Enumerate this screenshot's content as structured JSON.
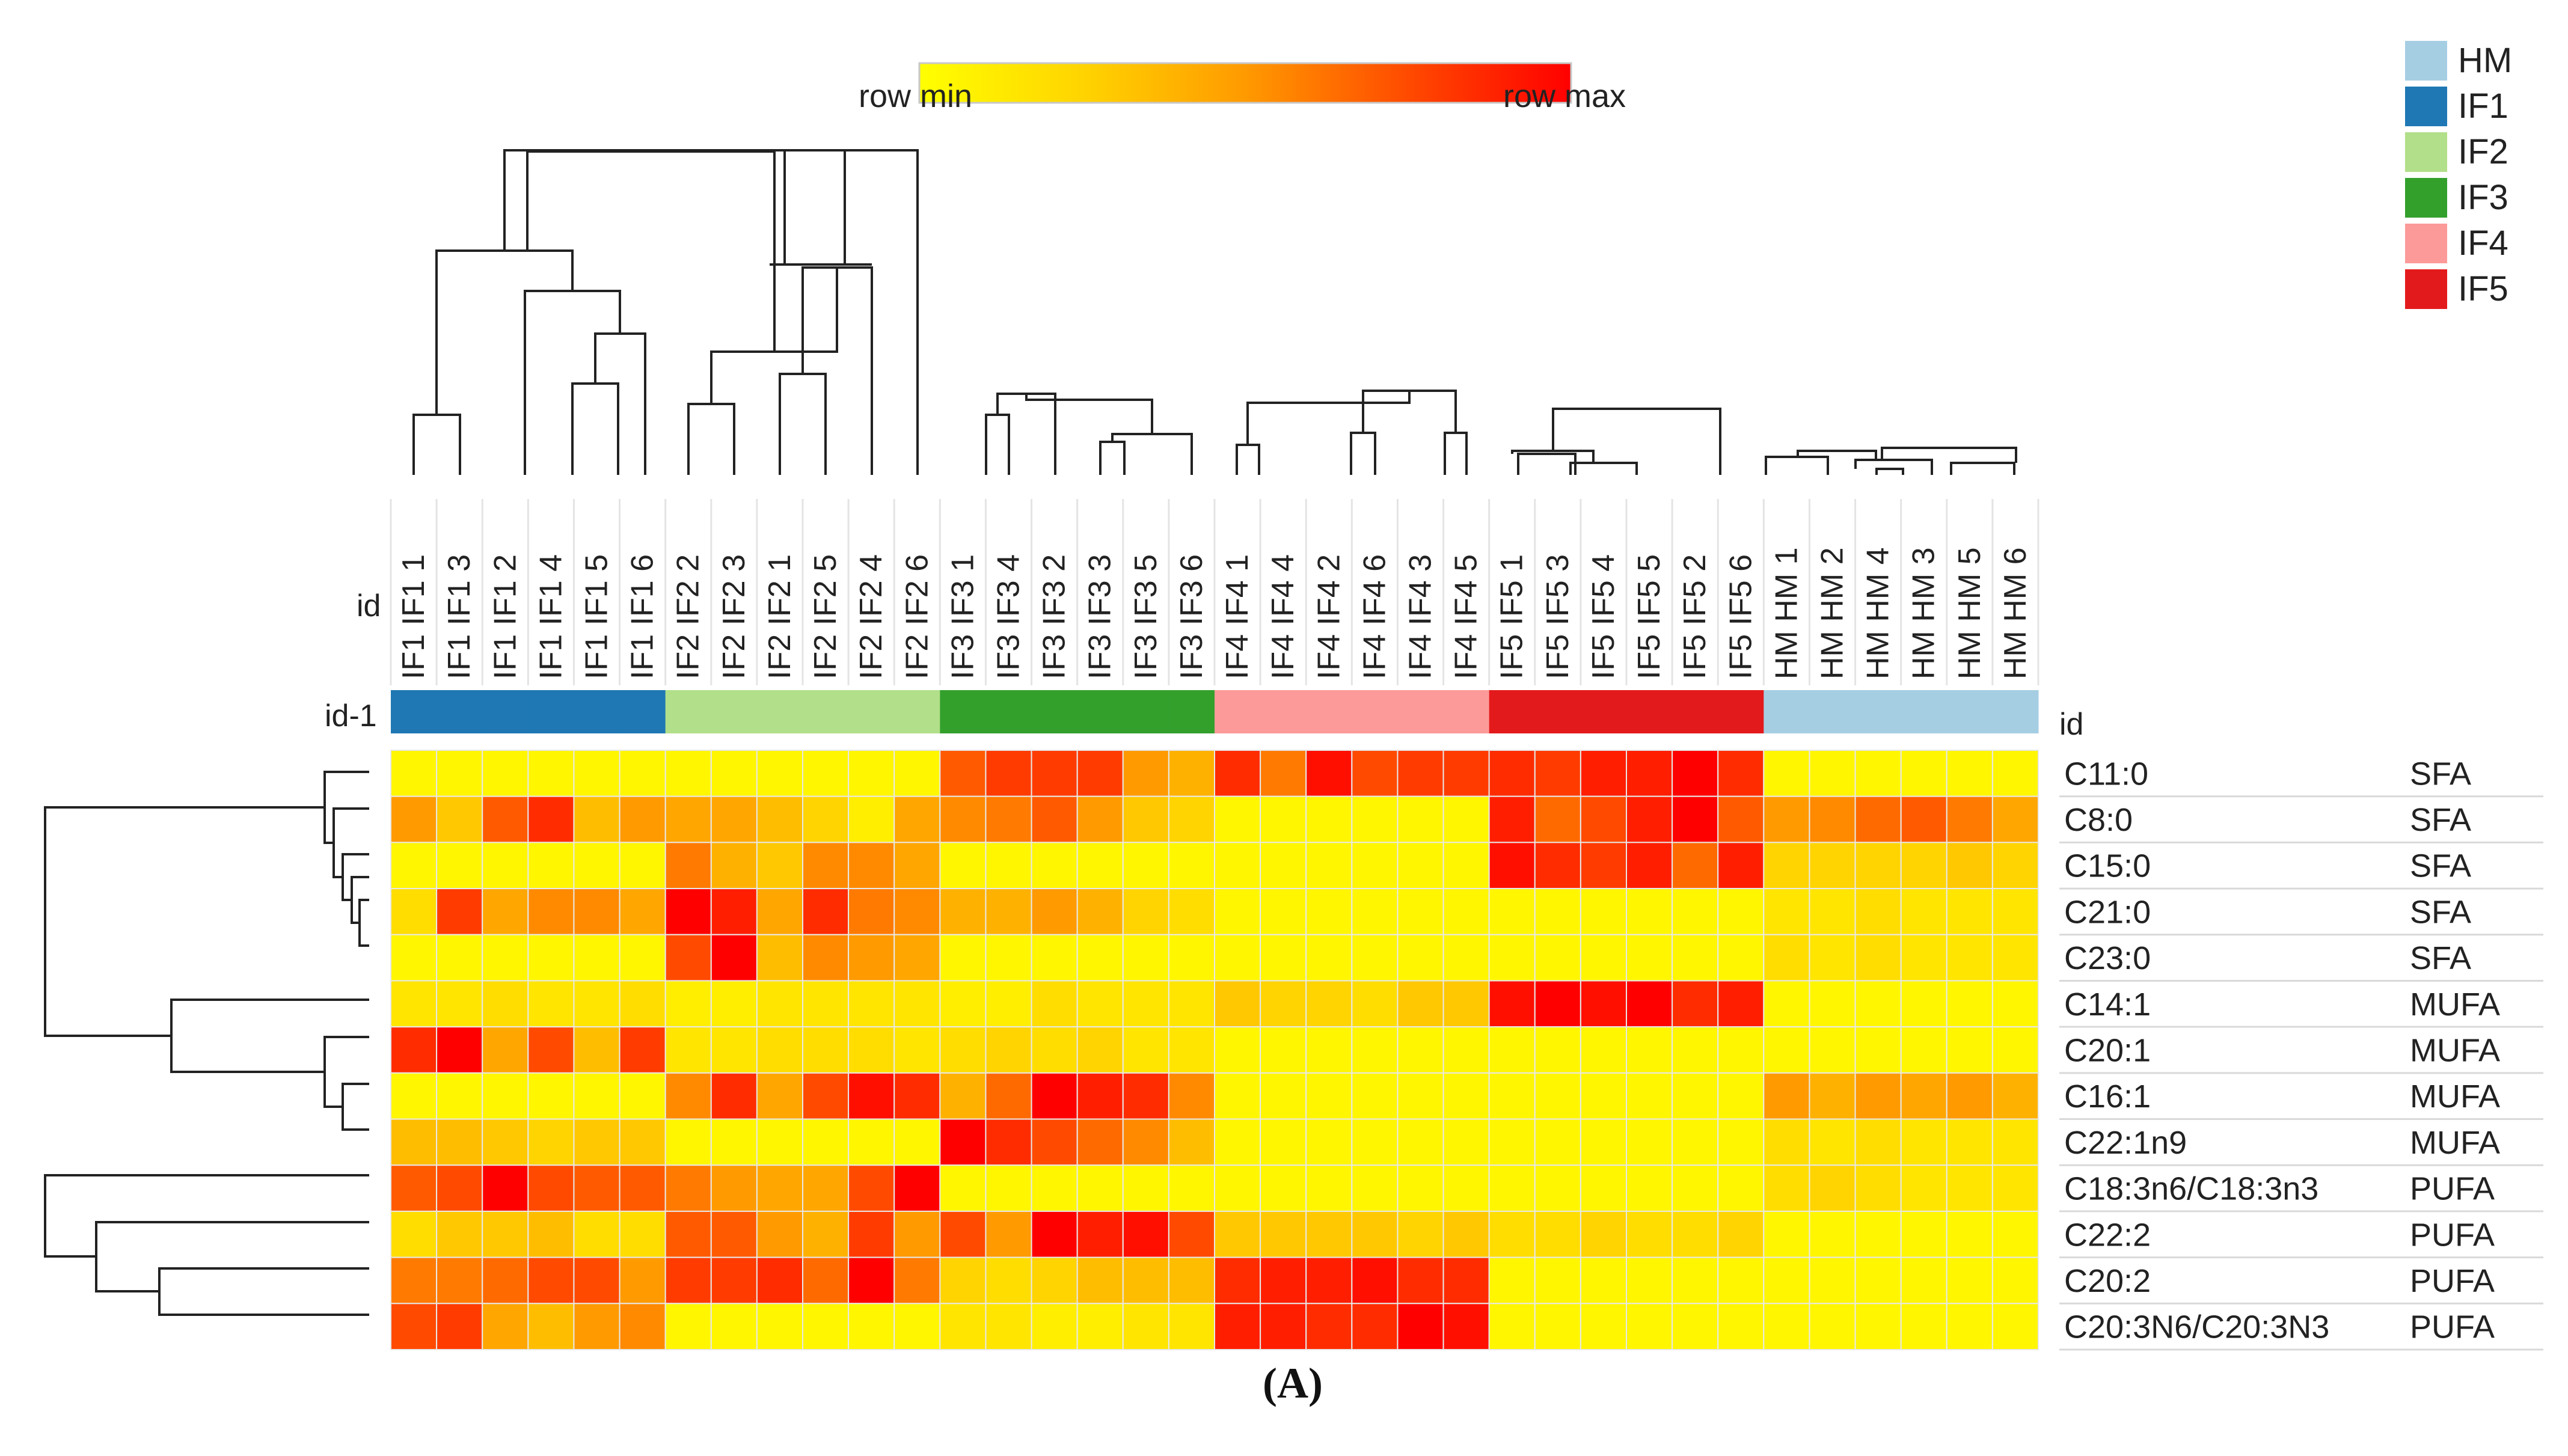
{
  "chart_data": {
    "type": "heatmap",
    "title": "",
    "panel_label": "(A)",
    "colorbar": {
      "min_label": "row min",
      "max_label": "row max",
      "colors": [
        "#ffff00",
        "#ffd400",
        "#ff9a00",
        "#ff4a00",
        "#ff0000"
      ]
    },
    "column_header_label": "id",
    "annotation_row_label": "id-1",
    "row_header_label": "id",
    "columns": [
      "IF1 IF1 1",
      "IF1 IF1 3",
      "IF1 IF1 2",
      "IF1 IF1 4",
      "IF1 IF1 5",
      "IF1 IF1 6",
      "IF2 IF2 2",
      "IF2 IF2 3",
      "IF2 IF2 1",
      "IF2 IF2 5",
      "IF2 IF2 4",
      "IF2 IF2 6",
      "IF3 IF3 1",
      "IF3 IF3 4",
      "IF3 IF3 2",
      "IF3 IF3 3",
      "IF3 IF3 5",
      "IF3 IF3 6",
      "IF4 IF4 1",
      "IF4 IF4 4",
      "IF4 IF4 2",
      "IF4 IF4 6",
      "IF4 IF4 3",
      "IF4 IF4 5",
      "IF5 IF5 1",
      "IF5 IF5 3",
      "IF5 IF5 4",
      "IF5 IF5 5",
      "IF5 IF5 2",
      "IF5 IF5 6",
      "HM HM 1",
      "HM HM 2",
      "HM HM 4",
      "HM HM 3",
      "HM HM 5",
      "HM HM 6"
    ],
    "column_groups": [
      "IF1",
      "IF1",
      "IF1",
      "IF1",
      "IF1",
      "IF1",
      "IF2",
      "IF2",
      "IF2",
      "IF2",
      "IF2",
      "IF2",
      "IF3",
      "IF3",
      "IF3",
      "IF3",
      "IF3",
      "IF3",
      "IF4",
      "IF4",
      "IF4",
      "IF4",
      "IF4",
      "IF4",
      "IF5",
      "IF5",
      "IF5",
      "IF5",
      "IF5",
      "IF5",
      "HM",
      "HM",
      "HM",
      "HM",
      "HM",
      "HM"
    ],
    "legend": [
      {
        "name": "HM",
        "color": "#a6cee3"
      },
      {
        "name": "IF1",
        "color": "#1f78b4"
      },
      {
        "name": "IF2",
        "color": "#b2df8a"
      },
      {
        "name": "IF3",
        "color": "#33a02c"
      },
      {
        "name": "IF4",
        "color": "#fb9a99"
      },
      {
        "name": "IF5",
        "color": "#e31a1c"
      }
    ],
    "rows": [
      {
        "name": "C11:0",
        "class": "SFA",
        "values": [
          0.05,
          0.05,
          0.05,
          0.05,
          0.05,
          0.05,
          0.05,
          0.05,
          0.05,
          0.05,
          0.05,
          0.05,
          0.7,
          0.8,
          0.8,
          0.8,
          0.5,
          0.4,
          0.85,
          0.6,
          0.95,
          0.75,
          0.8,
          0.8,
          0.85,
          0.8,
          0.9,
          0.9,
          1.0,
          0.85,
          0.05,
          0.05,
          0.05,
          0.05,
          0.05,
          0.05
        ]
      },
      {
        "name": "C8:0",
        "class": "SFA",
        "values": [
          0.5,
          0.3,
          0.7,
          0.85,
          0.35,
          0.5,
          0.45,
          0.45,
          0.35,
          0.25,
          0.1,
          0.45,
          0.55,
          0.6,
          0.7,
          0.5,
          0.3,
          0.25,
          0.05,
          0.05,
          0.05,
          0.05,
          0.05,
          0.05,
          0.9,
          0.65,
          0.75,
          0.9,
          1.0,
          0.7,
          0.5,
          0.55,
          0.65,
          0.7,
          0.6,
          0.45
        ]
      },
      {
        "name": "C15:0",
        "class": "SFA",
        "values": [
          0.05,
          0.05,
          0.05,
          0.05,
          0.05,
          0.05,
          0.6,
          0.4,
          0.3,
          0.55,
          0.55,
          0.45,
          0.05,
          0.05,
          0.05,
          0.05,
          0.05,
          0.05,
          0.05,
          0.05,
          0.05,
          0.05,
          0.05,
          0.05,
          0.95,
          0.85,
          0.8,
          0.9,
          0.65,
          0.9,
          0.25,
          0.25,
          0.25,
          0.25,
          0.3,
          0.25
        ]
      },
      {
        "name": "C21:0",
        "class": "SFA",
        "values": [
          0.2,
          0.8,
          0.45,
          0.55,
          0.55,
          0.45,
          1.0,
          0.9,
          0.45,
          0.85,
          0.6,
          0.55,
          0.4,
          0.4,
          0.5,
          0.4,
          0.25,
          0.2,
          0.05,
          0.05,
          0.05,
          0.05,
          0.05,
          0.05,
          0.05,
          0.05,
          0.05,
          0.05,
          0.05,
          0.05,
          0.15,
          0.15,
          0.2,
          0.15,
          0.15,
          0.15
        ]
      },
      {
        "name": "C23:0",
        "class": "SFA",
        "values": [
          0.05,
          0.05,
          0.05,
          0.05,
          0.05,
          0.05,
          0.75,
          1.0,
          0.35,
          0.55,
          0.5,
          0.45,
          0.05,
          0.05,
          0.05,
          0.05,
          0.05,
          0.05,
          0.05,
          0.05,
          0.05,
          0.05,
          0.05,
          0.05,
          0.05,
          0.05,
          0.05,
          0.05,
          0.05,
          0.05,
          0.2,
          0.15,
          0.2,
          0.15,
          0.15,
          0.15
        ]
      },
      {
        "name": "C14:1",
        "class": "MUFA",
        "values": [
          0.15,
          0.15,
          0.2,
          0.15,
          0.15,
          0.2,
          0.1,
          0.1,
          0.15,
          0.15,
          0.15,
          0.15,
          0.1,
          0.1,
          0.2,
          0.15,
          0.15,
          0.15,
          0.3,
          0.25,
          0.25,
          0.2,
          0.3,
          0.3,
          0.95,
          1.0,
          0.95,
          1.0,
          0.85,
          0.9,
          0.05,
          0.05,
          0.05,
          0.05,
          0.05,
          0.05
        ]
      },
      {
        "name": "C20:1",
        "class": "MUFA",
        "values": [
          0.85,
          1.0,
          0.45,
          0.75,
          0.35,
          0.8,
          0.15,
          0.15,
          0.2,
          0.2,
          0.2,
          0.15,
          0.2,
          0.25,
          0.2,
          0.25,
          0.15,
          0.15,
          0.05,
          0.05,
          0.05,
          0.05,
          0.05,
          0.05,
          0.05,
          0.05,
          0.05,
          0.05,
          0.05,
          0.05,
          0.05,
          0.05,
          0.05,
          0.05,
          0.05,
          0.05
        ]
      },
      {
        "name": "C16:1",
        "class": "MUFA",
        "values": [
          0.05,
          0.05,
          0.05,
          0.05,
          0.05,
          0.05,
          0.55,
          0.85,
          0.45,
          0.75,
          0.95,
          0.85,
          0.4,
          0.65,
          1.0,
          0.9,
          0.85,
          0.55,
          0.05,
          0.05,
          0.05,
          0.05,
          0.05,
          0.05,
          0.05,
          0.05,
          0.05,
          0.05,
          0.05,
          0.05,
          0.5,
          0.4,
          0.5,
          0.45,
          0.5,
          0.4
        ]
      },
      {
        "name": "C22:1n9",
        "class": "MUFA",
        "values": [
          0.35,
          0.35,
          0.3,
          0.25,
          0.3,
          0.3,
          0.05,
          0.05,
          0.05,
          0.05,
          0.05,
          0.05,
          1.0,
          0.85,
          0.75,
          0.65,
          0.55,
          0.35,
          0.05,
          0.05,
          0.05,
          0.05,
          0.05,
          0.05,
          0.05,
          0.05,
          0.05,
          0.05,
          0.05,
          0.05,
          0.2,
          0.15,
          0.2,
          0.15,
          0.15,
          0.15
        ]
      },
      {
        "name": "C18:3n6/C18:3n3",
        "class": "PUFA",
        "values": [
          0.7,
          0.75,
          1.0,
          0.75,
          0.7,
          0.7,
          0.6,
          0.5,
          0.45,
          0.45,
          0.75,
          1.0,
          0.05,
          0.05,
          0.05,
          0.05,
          0.05,
          0.05,
          0.05,
          0.05,
          0.05,
          0.05,
          0.05,
          0.05,
          0.05,
          0.05,
          0.05,
          0.05,
          0.05,
          0.05,
          0.2,
          0.25,
          0.2,
          0.15,
          0.15,
          0.15
        ]
      },
      {
        "name": "C22:2",
        "class": "PUFA",
        "values": [
          0.2,
          0.3,
          0.3,
          0.35,
          0.2,
          0.2,
          0.7,
          0.7,
          0.5,
          0.4,
          0.8,
          0.5,
          0.75,
          0.5,
          1.0,
          0.9,
          0.95,
          0.75,
          0.3,
          0.3,
          0.3,
          0.3,
          0.25,
          0.3,
          0.2,
          0.2,
          0.25,
          0.2,
          0.2,
          0.25,
          0.05,
          0.05,
          0.05,
          0.05,
          0.05,
          0.05
        ]
      },
      {
        "name": "C20:2",
        "class": "PUFA",
        "values": [
          0.6,
          0.6,
          0.65,
          0.75,
          0.75,
          0.5,
          0.8,
          0.8,
          0.85,
          0.65,
          1.0,
          0.6,
          0.25,
          0.2,
          0.25,
          0.35,
          0.35,
          0.35,
          0.85,
          0.9,
          0.9,
          0.95,
          0.85,
          0.85,
          0.05,
          0.05,
          0.05,
          0.05,
          0.05,
          0.05,
          0.05,
          0.05,
          0.05,
          0.05,
          0.05,
          0.05
        ]
      },
      {
        "name": "C20:3N6/C20:3N3",
        "class": "PUFA",
        "values": [
          0.75,
          0.8,
          0.45,
          0.35,
          0.5,
          0.55,
          0.05,
          0.05,
          0.05,
          0.05,
          0.05,
          0.05,
          0.15,
          0.15,
          0.1,
          0.1,
          0.15,
          0.15,
          0.9,
          0.9,
          0.85,
          0.85,
          1.0,
          0.95,
          0.05,
          0.05,
          0.05,
          0.05,
          0.05,
          0.05,
          0.05,
          0.05,
          0.05,
          0.05,
          0.05,
          0.05
        ]
      }
    ]
  }
}
